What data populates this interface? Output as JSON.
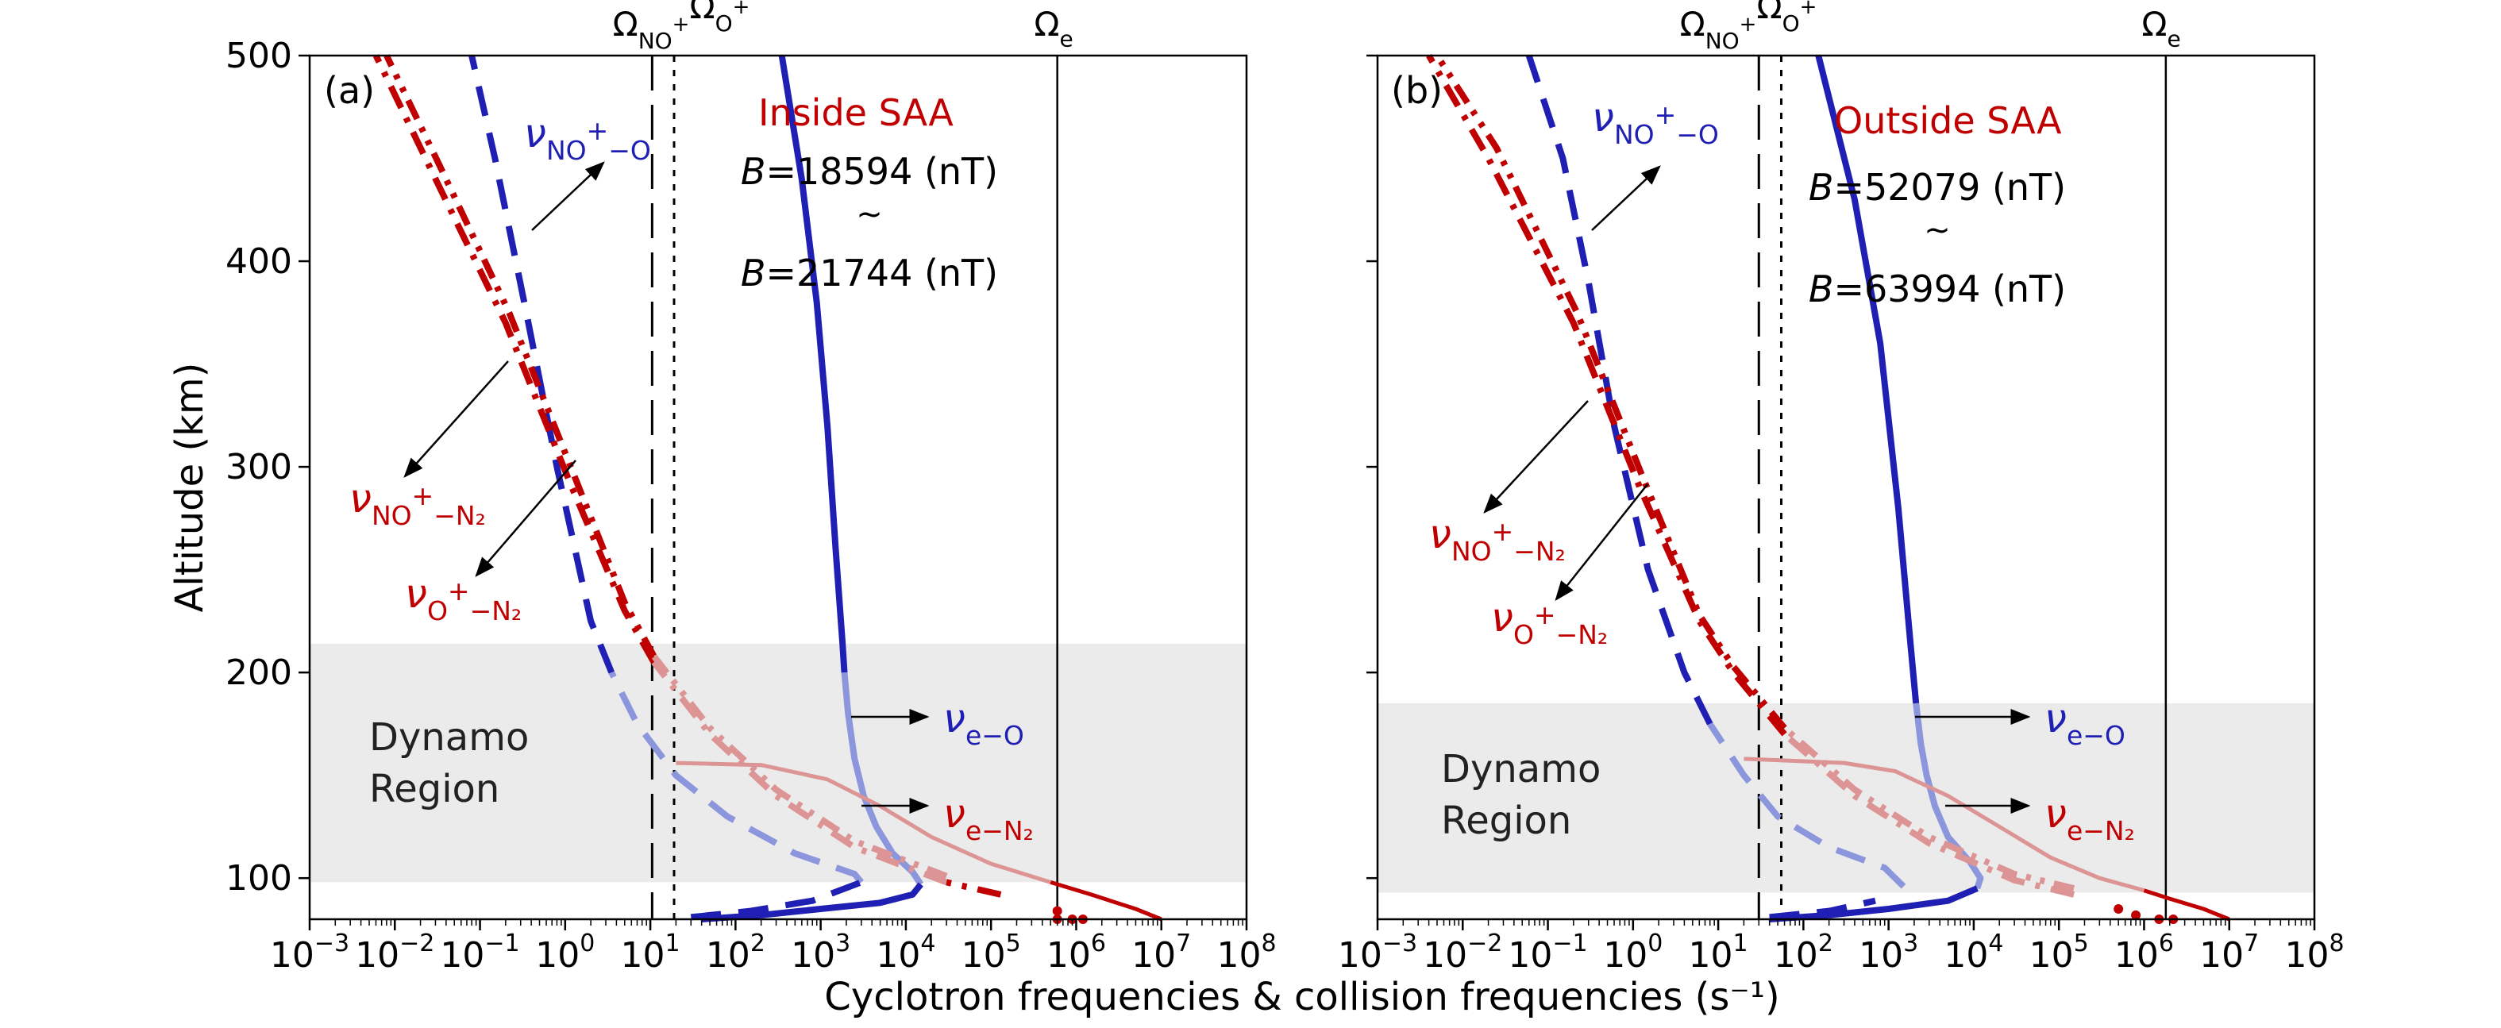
{
  "figure": {
    "xlabel": "Cyclotron frequencies & collision frequencies (s⁻¹)"
  },
  "colors": {
    "blue": "#1f1fb4",
    "blue_light": "#8c96dc",
    "red": "#c00000",
    "red_light": "#dc9494",
    "shade": "#ebebeb"
  },
  "chart_data": [
    {
      "type": "line",
      "panel_label": "(a)",
      "title": "Inside SAA",
      "ylabel": "Altitude (km)",
      "xscale": "log",
      "xlim": [
        0.001,
        100000000
      ],
      "ylim": [
        80,
        500
      ],
      "yticks": [
        "100",
        "200",
        "300",
        "400",
        "500"
      ],
      "x_tick_labels": [
        {
          "base": "10",
          "exp": "−3"
        },
        {
          "base": "10",
          "exp": "−2"
        },
        {
          "base": "10",
          "exp": "−1"
        },
        {
          "base": "10",
          "exp": "0"
        },
        {
          "base": "10",
          "exp": "1"
        },
        {
          "base": "10",
          "exp": "2"
        },
        {
          "base": "10",
          "exp": "3"
        },
        {
          "base": "10",
          "exp": "4"
        },
        {
          "base": "10",
          "exp": "5"
        },
        {
          "base": "10",
          "exp": "6"
        },
        {
          "base": "10",
          "exp": "7"
        },
        {
          "base": "10",
          "exp": "8"
        }
      ],
      "b_field": {
        "line1": "B=18594 (nT)",
        "approx": "~",
        "line2": "B=21744 (nT)"
      },
      "dynamo": {
        "range_km": [
          98,
          214
        ],
        "label_line1": "Dynamo",
        "label_line2": "Region"
      },
      "vlines": [
        {
          "label": {
            "base": "Ω",
            "sub": "NO",
            "sup": "+"
          },
          "x": 10.5,
          "style": "longdash"
        },
        {
          "label": {
            "base": "Ω",
            "sub": "O",
            "sup": "+"
          },
          "x": 19,
          "style": "dotted"
        },
        {
          "label": {
            "base": "Ω",
            "sub": "e",
            "sup": ""
          },
          "x": 600000,
          "style": "solid"
        }
      ],
      "series": [
        {
          "key": "nu_e_O",
          "color": "blue",
          "style": "solid",
          "points": [
            [
              40,
              80
            ],
            [
              200,
              82
            ],
            [
              1000,
              85
            ],
            [
              5000,
              88
            ],
            [
              12000,
              92
            ],
            [
              15000,
              97
            ],
            [
              12000,
              103
            ],
            [
              7000,
              112
            ],
            [
              4500,
              125
            ],
            [
              3200,
              140
            ],
            [
              2500,
              158
            ],
            [
              2100,
              180
            ],
            [
              1900,
              200
            ],
            [
              1800,
              215
            ],
            [
              1500,
              260
            ],
            [
              1200,
              320
            ],
            [
              900,
              380
            ],
            [
              600,
              440
            ],
            [
              350,
              500
            ]
          ]
        },
        {
          "key": "nu_NO_O",
          "color": "blue",
          "style": "dashed",
          "points": [
            [
              30,
              81
            ],
            [
              150,
              84
            ],
            [
              800,
              89
            ],
            [
              3000,
              98
            ],
            [
              2500,
              102
            ],
            [
              500,
              112
            ],
            [
              80,
              130
            ],
            [
              20,
              150
            ],
            [
              7,
              175
            ],
            [
              3.5,
              200
            ],
            [
              2,
              225
            ],
            [
              0.8,
              300
            ],
            [
              0.35,
              375
            ],
            [
              0.15,
              450
            ],
            [
              0.08,
              500
            ]
          ]
        },
        {
          "key": "nu_NO_N2",
          "color": "red",
          "style": "dashdot",
          "points": [
            [
              130000,
              92
            ],
            [
              30000,
              98
            ],
            [
              2500,
              115
            ],
            [
              300,
              140
            ],
            [
              50,
              170
            ],
            [
              11,
              205
            ],
            [
              5,
              230
            ],
            [
              1.2,
              290
            ],
            [
              0.2,
              370
            ],
            [
              0.03,
              440
            ],
            [
              0.006,
              500
            ]
          ]
        },
        {
          "key": "nu_O_N2",
          "color": "red",
          "style": "dashdotdot",
          "points": [
            [
              130000,
              95
            ],
            [
              30000,
              101
            ],
            [
              2500,
              118
            ],
            [
              300,
              143
            ],
            [
              50,
              173
            ],
            [
              11,
              208
            ],
            [
              5,
              234
            ],
            [
              1.3,
              295
            ],
            [
              0.22,
              375
            ],
            [
              0.035,
              445
            ],
            [
              0.008,
              500
            ]
          ]
        },
        {
          "key": "nu_e_N2",
          "color": "red",
          "style": "solid",
          "points": [
            [
              10000000,
              80
            ],
            [
              5000000,
              85
            ],
            [
              1500000,
              92
            ],
            [
              500000,
              98
            ],
            [
              100000,
              107
            ],
            [
              20000,
              120
            ],
            [
              5000,
              135
            ],
            [
              1200,
              148
            ],
            [
              200,
              155
            ],
            [
              20,
              156
            ]
          ]
        }
      ],
      "scatter_points": [
        [
          600000,
          80
        ],
        [
          900000,
          80
        ],
        [
          1200000,
          80
        ],
        [
          600000,
          84
        ]
      ],
      "annotations": [
        {
          "key": "nu_NO_O",
          "base": "ν",
          "sub": "NO",
          "sup": "+",
          "sub2": "−O",
          "color": "blue"
        },
        {
          "key": "nu_NO_N2",
          "base": "ν",
          "sub": "NO",
          "sup": "+",
          "sub2": "−N₂",
          "color": "red"
        },
        {
          "key": "nu_O_N2",
          "base": "ν",
          "sub": "O",
          "sup": "+",
          "sub2": "−N₂",
          "color": "red"
        },
        {
          "key": "nu_e_O",
          "base": "ν",
          "sub": "e−O",
          "sup": "",
          "sub2": "",
          "color": "blue"
        },
        {
          "key": "nu_e_N2",
          "base": "ν",
          "sub": "e−N₂",
          "sup": "",
          "sub2": "",
          "color": "red"
        }
      ]
    },
    {
      "type": "line",
      "panel_label": "(b)",
      "title": "Outside SAA",
      "xscale": "log",
      "xlim": [
        0.001,
        100000000
      ],
      "ylim": [
        80,
        500
      ],
      "x_tick_labels": [
        {
          "base": "10",
          "exp": "−3"
        },
        {
          "base": "10",
          "exp": "−2"
        },
        {
          "base": "10",
          "exp": "−1"
        },
        {
          "base": "10",
          "exp": "0"
        },
        {
          "base": "10",
          "exp": "1"
        },
        {
          "base": "10",
          "exp": "2"
        },
        {
          "base": "10",
          "exp": "3"
        },
        {
          "base": "10",
          "exp": "4"
        },
        {
          "base": "10",
          "exp": "5"
        },
        {
          "base": "10",
          "exp": "6"
        },
        {
          "base": "10",
          "exp": "7"
        },
        {
          "base": "10",
          "exp": "8"
        }
      ],
      "b_field": {
        "line1": "B=52079 (nT)",
        "approx": "~",
        "line2": "B=63994 (nT)"
      },
      "dynamo": {
        "range_km": [
          93,
          185
        ],
        "label_line1": "Dynamo",
        "label_line2": "Region"
      },
      "vlines": [
        {
          "label": {
            "base": "Ω",
            "sub": "NO",
            "sup": "+"
          },
          "x": 30,
          "style": "longdash"
        },
        {
          "label": {
            "base": "Ω",
            "sub": "O",
            "sup": "+"
          },
          "x": 55,
          "style": "dotted"
        },
        {
          "label": {
            "base": "Ω",
            "sub": "e",
            "sup": ""
          },
          "x": 1800000,
          "style": "solid"
        }
      ],
      "series": [
        {
          "key": "nu_e_O",
          "color": "blue",
          "style": "solid",
          "points": [
            [
              40,
              80
            ],
            [
              200,
              82
            ],
            [
              1000,
              85
            ],
            [
              5000,
              89
            ],
            [
              11000,
              95
            ],
            [
              12000,
              100
            ],
            [
              9000,
              108
            ],
            [
              5000,
              120
            ],
            [
              3500,
              135
            ],
            [
              2800,
              150
            ],
            [
              2400,
              165
            ],
            [
              2100,
              185
            ],
            [
              1800,
              215
            ],
            [
              1300,
              280
            ],
            [
              800,
              360
            ],
            [
              400,
              430
            ],
            [
              150,
              500
            ]
          ]
        },
        {
          "key": "nu_NO_O",
          "color": "blue",
          "style": "dashed",
          "points": [
            [
              40,
              81
            ],
            [
              200,
              84
            ],
            [
              700,
              89
            ],
            [
              1500,
              96
            ],
            [
              900,
              105
            ],
            [
              200,
              115
            ],
            [
              50,
              130
            ],
            [
              20,
              150
            ],
            [
              8,
              175
            ],
            [
              4,
              200
            ],
            [
              1.5,
              250
            ],
            [
              0.6,
              320
            ],
            [
              0.3,
              390
            ],
            [
              0.15,
              450
            ],
            [
              0.06,
              500
            ]
          ]
        },
        {
          "key": "nu_NO_N2",
          "color": "red",
          "style": "dashdot",
          "points": [
            [
              150000,
              92
            ],
            [
              30000,
              99
            ],
            [
              3000,
              117
            ],
            [
              400,
              140
            ],
            [
              60,
              170
            ],
            [
              15,
              200
            ],
            [
              6,
              225
            ],
            [
              1.2,
              290
            ],
            [
              0.2,
              370
            ],
            [
              0.02,
              450
            ],
            [
              0.004,
              500
            ]
          ]
        },
        {
          "key": "nu_O_N2",
          "color": "red",
          "style": "dashdotdot",
          "points": [
            [
              150000,
              95
            ],
            [
              30000,
              102
            ],
            [
              3000,
              120
            ],
            [
              400,
              143
            ],
            [
              60,
              173
            ],
            [
              15,
              203
            ],
            [
              6,
              228
            ],
            [
              1.3,
              295
            ],
            [
              0.22,
              375
            ],
            [
              0.025,
              455
            ],
            [
              0.005,
              500
            ]
          ]
        },
        {
          "key": "nu_e_N2",
          "color": "red",
          "style": "solid",
          "points": [
            [
              10000000,
              80
            ],
            [
              5000000,
              85
            ],
            [
              2000000,
              90
            ],
            [
              1000000,
              94
            ],
            [
              300000,
              100
            ],
            [
              80000,
              110
            ],
            [
              20000,
              125
            ],
            [
              5000,
              140
            ],
            [
              1200,
              152
            ],
            [
              300,
              156
            ],
            [
              20,
              158
            ]
          ]
        }
      ],
      "scatter_points": [
        [
          500000,
          85
        ],
        [
          800000,
          82
        ],
        [
          1500000,
          80
        ],
        [
          2200000,
          80
        ]
      ],
      "annotations": [
        {
          "key": "nu_NO_O",
          "base": "ν",
          "sub": "NO",
          "sup": "+",
          "sub2": "−O",
          "color": "blue"
        },
        {
          "key": "nu_NO_N2",
          "base": "ν",
          "sub": "NO",
          "sup": "+",
          "sub2": "−N₂",
          "color": "red"
        },
        {
          "key": "nu_O_N2",
          "base": "ν",
          "sub": "O",
          "sup": "+",
          "sub2": "−N₂",
          "color": "red"
        },
        {
          "key": "nu_e_O",
          "base": "ν",
          "sub": "e−O",
          "sup": "",
          "sub2": "",
          "color": "blue"
        },
        {
          "key": "nu_e_N2",
          "base": "ν",
          "sub": "e−N₂",
          "sup": "",
          "sub2": "",
          "color": "red"
        }
      ]
    }
  ]
}
